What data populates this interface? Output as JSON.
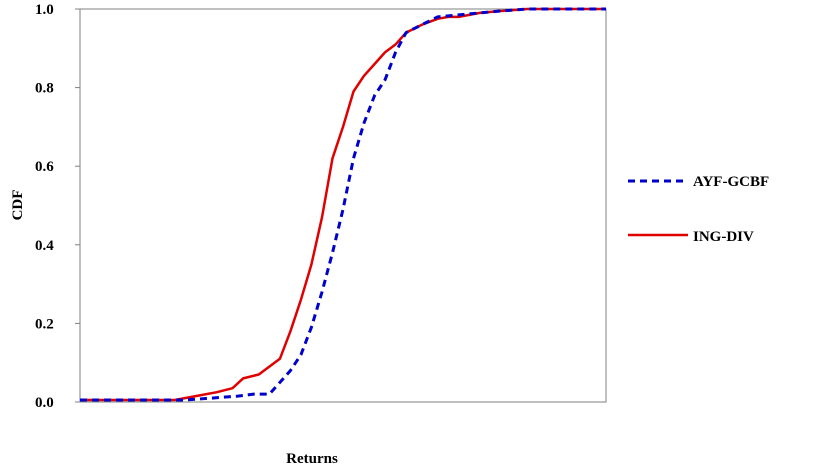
{
  "chart_data": {
    "type": "line",
    "xlabel": "Returns",
    "ylabel": "CDF",
    "ylim": [
      0,
      1
    ],
    "yticks": [
      "0.0",
      "0.2",
      "0.4",
      "0.6",
      "0.8",
      "1.0"
    ],
    "grid": false,
    "legend_position": "right",
    "series": [
      {
        "name": "AYF-GCBF",
        "color": "#0000cc",
        "dash": "dashed",
        "x": [
          0.0,
          0.05,
          0.1,
          0.15,
          0.2,
          0.25,
          0.3,
          0.33,
          0.36,
          0.38,
          0.4,
          0.42,
          0.44,
          0.46,
          0.48,
          0.5,
          0.52,
          0.54,
          0.56,
          0.58,
          0.6,
          0.62,
          0.65,
          0.68,
          0.72,
          0.76,
          0.8,
          0.85,
          0.9,
          0.95,
          1.0
        ],
        "y": [
          0.005,
          0.005,
          0.005,
          0.005,
          0.005,
          0.01,
          0.015,
          0.02,
          0.02,
          0.05,
          0.08,
          0.12,
          0.19,
          0.28,
          0.38,
          0.49,
          0.62,
          0.71,
          0.78,
          0.82,
          0.89,
          0.94,
          0.96,
          0.98,
          0.985,
          0.99,
          0.995,
          1.0,
          1.0,
          1.0,
          1.0
        ]
      },
      {
        "name": "ING-DIV",
        "color": "#e00000",
        "dash": "solid",
        "x": [
          0.0,
          0.05,
          0.1,
          0.15,
          0.18,
          0.22,
          0.26,
          0.29,
          0.31,
          0.34,
          0.38,
          0.4,
          0.42,
          0.44,
          0.46,
          0.48,
          0.5,
          0.52,
          0.54,
          0.56,
          0.58,
          0.6,
          0.62,
          0.65,
          0.68,
          0.7,
          0.72,
          0.76,
          0.8,
          0.85,
          0.9,
          0.95,
          1.0
        ],
        "y": [
          0.005,
          0.005,
          0.005,
          0.005,
          0.005,
          0.015,
          0.025,
          0.035,
          0.06,
          0.07,
          0.11,
          0.18,
          0.26,
          0.35,
          0.47,
          0.62,
          0.7,
          0.79,
          0.83,
          0.86,
          0.89,
          0.91,
          0.94,
          0.96,
          0.975,
          0.98,
          0.98,
          0.99,
          0.995,
          1.0,
          1.0,
          1.0,
          1.0
        ]
      }
    ]
  }
}
